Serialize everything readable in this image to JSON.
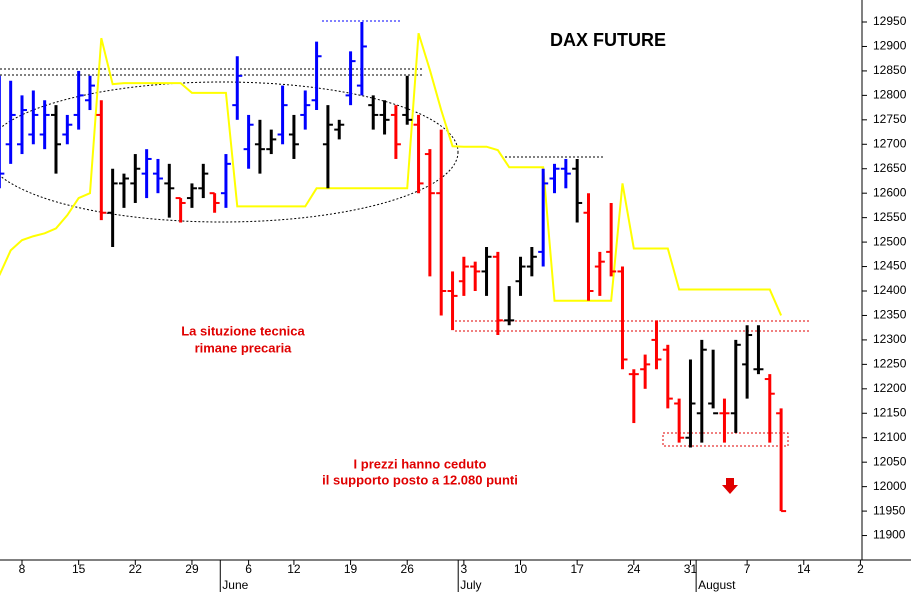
{
  "chart_data": {
    "type": "ohlc",
    "title": "DAX FUTURE",
    "annotations": [
      "La situzione tecnica",
      "rimane precaria",
      "I prezzi hanno ceduto",
      "il supporto posto a 12.080 punti"
    ],
    "months": [
      "June",
      "July",
      "August"
    ],
    "categories": [
      null,
      null,
      "8",
      null,
      null,
      null,
      null,
      "15",
      null,
      null,
      null,
      null,
      "22",
      null,
      null,
      null,
      null,
      "29",
      null,
      null,
      null,
      null,
      "6",
      null,
      null,
      null,
      "12",
      null,
      null,
      null,
      null,
      "19",
      null,
      null,
      null,
      null,
      "26",
      null,
      null,
      null,
      null,
      "3",
      null,
      null,
      null,
      null,
      "10",
      null,
      null,
      null,
      null,
      "17",
      null,
      null,
      null,
      null,
      "24",
      null,
      null,
      null,
      null,
      "31",
      null,
      null,
      null,
      null,
      "7",
      null,
      null,
      null,
      null,
      "14",
      null,
      null,
      null,
      null,
      "2"
    ],
    "ohlc": {
      "high": [
        12840,
        12830,
        12800,
        12810,
        12790,
        12780,
        12760,
        12850,
        12840,
        12790,
        12650,
        12640,
        12680,
        12690,
        12670,
        12660,
        12590,
        12620,
        12660,
        12600,
        12680,
        12880,
        12760,
        12750,
        12730,
        12820,
        12760,
        12810,
        12910,
        12780,
        12750,
        12890,
        12950,
        12800,
        12790,
        12780,
        12840,
        12760,
        12690,
        12730,
        12440,
        12470,
        12460,
        12490,
        12480,
        12410,
        12470,
        12490,
        12650,
        12660,
        12670,
        12670,
        12600,
        12480,
        12580,
        12450,
        12240,
        12270,
        12340,
        12290,
        12180,
        12260,
        12300,
        12280,
        12180,
        12300,
        12330,
        12330,
        12230,
        12160,
        null,
        null,
        null,
        null,
        null,
        null,
        null
      ],
      "low": [
        12610,
        12660,
        12680,
        12700,
        12690,
        12640,
        12700,
        12730,
        12770,
        12545,
        12490,
        12570,
        12580,
        12590,
        12600,
        12550,
        12540,
        12570,
        12590,
        12560,
        12570,
        12750,
        12650,
        12640,
        12680,
        12700,
        12670,
        12730,
        12770,
        12610,
        12710,
        12780,
        12800,
        12730,
        12720,
        12670,
        12740,
        12600,
        12430,
        12350,
        12320,
        12390,
        12400,
        12390,
        12310,
        12330,
        12390,
        12430,
        12450,
        12600,
        12610,
        12540,
        12380,
        12390,
        12430,
        12240,
        12130,
        12200,
        12240,
        12160,
        12090,
        12080,
        12090,
        12160,
        12090,
        12110,
        12180,
        12230,
        12090,
        11950,
        null,
        null,
        null,
        null,
        null,
        null,
        null
      ],
      "open": [
        12720,
        12700,
        12700,
        12720,
        12720,
        12760,
        12720,
        12760,
        12790,
        12760,
        12560,
        12620,
        12620,
        12640,
        12640,
        12620,
        12590,
        12590,
        12610,
        12600,
        12600,
        12780,
        12690,
        12700,
        12690,
        12720,
        12720,
        12760,
        12790,
        12700,
        12730,
        12800,
        12820,
        12780,
        12760,
        12760,
        12760,
        12740,
        12680,
        12600,
        12400,
        12420,
        12450,
        12440,
        12470,
        12340,
        12420,
        12450,
        12480,
        12630,
        12650,
        12650,
        12560,
        12450,
        12480,
        12440,
        12230,
        12240,
        12300,
        12280,
        12170,
        12100,
        12150,
        12170,
        12150,
        12150,
        12250,
        12240,
        12220,
        12150,
        null,
        null,
        null,
        null,
        null,
        null,
        null
      ],
      "close": [
        12640,
        12760,
        12770,
        12760,
        12760,
        12700,
        12740,
        12800,
        12820,
        12560,
        12620,
        12630,
        12650,
        12670,
        12630,
        12610,
        12580,
        12610,
        12640,
        12580,
        12660,
        12840,
        12740,
        12690,
        12710,
        12780,
        12700,
        12780,
        12880,
        12740,
        12740,
        12870,
        12900,
        12760,
        12750,
        12700,
        12750,
        12620,
        12600,
        12400,
        12390,
        12450,
        12440,
        12470,
        12340,
        12340,
        12450,
        12470,
        12620,
        12650,
        12640,
        12580,
        12400,
        12460,
        12440,
        12260,
        12230,
        12250,
        12260,
        12180,
        12100,
        12170,
        12280,
        12150,
        12150,
        12290,
        12310,
        12240,
        12190,
        11950,
        null,
        null,
        null,
        null,
        null,
        null,
        null
      ],
      "colors": [
        "blue",
        "blue",
        "blue",
        "blue",
        "blue",
        "black",
        "blue",
        "blue",
        "blue",
        "red",
        "black",
        "black",
        "black",
        "blue",
        "blue",
        "black",
        "red",
        "black",
        "black",
        "red",
        "blue",
        "blue",
        "blue",
        "black",
        "black",
        "blue",
        "black",
        "blue",
        "blue",
        "black",
        "black",
        "blue",
        "blue",
        "black",
        "black",
        "red",
        "black",
        "red",
        "red",
        "red",
        "red",
        "red",
        "red",
        "black",
        "red",
        "black",
        "black",
        "black",
        "blue",
        "blue",
        "blue",
        "black",
        "red",
        "red",
        "red",
        "red",
        "red",
        "red",
        "red",
        "red",
        "red",
        "black",
        "black",
        "black",
        "red",
        "black",
        "black",
        "black",
        "red",
        "red",
        null,
        null,
        null,
        null,
        null,
        null,
        null
      ]
    },
    "overlay": {
      "color": "#ffff00",
      "values": [
        12432,
        12483,
        12504,
        12512,
        12518,
        12528,
        12555,
        12590,
        12600,
        12917,
        12823,
        12825,
        12825,
        12825,
        12825,
        12825,
        12825,
        12805,
        12805,
        12805,
        12805,
        12573,
        12573,
        12573,
        12573,
        12573,
        12573,
        12573,
        12610,
        12610,
        12610,
        12610,
        12610,
        12610,
        12610,
        12610,
        12610,
        12927,
        12852,
        12770,
        12696,
        12695,
        12695,
        12695,
        12688,
        12653,
        12653,
        12653,
        12653,
        12380,
        12380,
        12380,
        12380,
        12380,
        12380,
        12620,
        12487,
        12487,
        12487,
        12487,
        12403,
        12403,
        12403,
        12403,
        12403,
        12403,
        12403,
        12403,
        12403,
        12350,
        null,
        null,
        null,
        null,
        null,
        null,
        null
      ]
    },
    "ylim": [
      11850,
      12995
    ],
    "yticks": [
      11900,
      11950,
      12000,
      12050,
      12100,
      12150,
      12200,
      12250,
      12300,
      12350,
      12400,
      12450,
      12500,
      12550,
      12600,
      12650,
      12700,
      12750,
      12800,
      12850,
      12900,
      12950
    ]
  }
}
